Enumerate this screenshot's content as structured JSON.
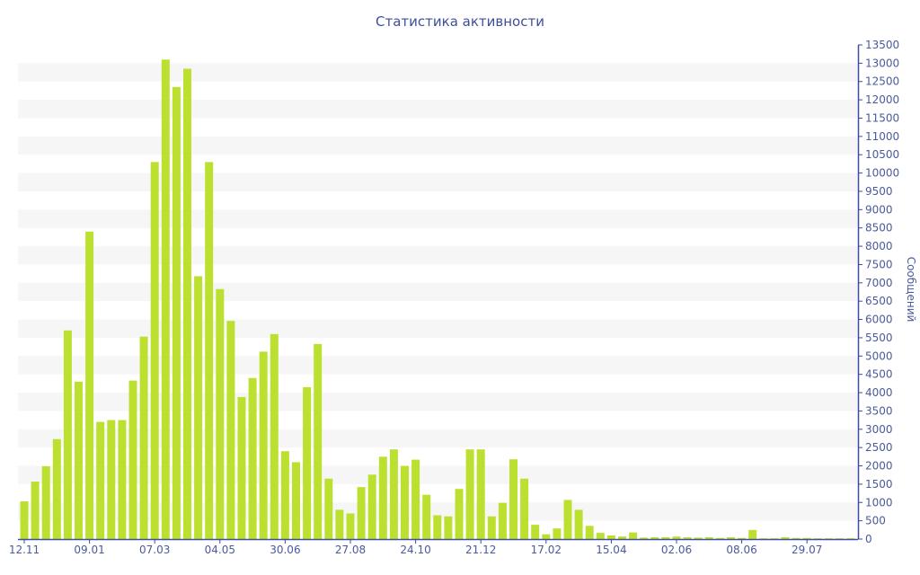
{
  "chart_data": {
    "type": "bar",
    "title": "Статистика активности",
    "ylabel": "Сообщений",
    "xlabel": "",
    "ylim": [
      0,
      13500
    ],
    "ytick_step": 500,
    "grid": "alternating horizontal bands",
    "bar_color": "#bce030",
    "axis_color": "#3d4f9a",
    "values": [
      1030,
      1570,
      1990,
      2730,
      5700,
      4300,
      8400,
      3200,
      3250,
      3250,
      4330,
      5530,
      10300,
      13100,
      12350,
      12850,
      7180,
      10300,
      6830,
      5960,
      3880,
      4400,
      5120,
      5600,
      2400,
      2100,
      4150,
      5330,
      1650,
      800,
      700,
      1420,
      1760,
      2250,
      2450,
      2000,
      2170,
      1210,
      650,
      620,
      1370,
      2450,
      2450,
      620,
      990,
      2180,
      1650,
      390,
      130,
      290,
      1070,
      800,
      360,
      170,
      100,
      70,
      180,
      40,
      50,
      50,
      70,
      50,
      40,
      50,
      30,
      50,
      30,
      250,
      20,
      20,
      50,
      30,
      30,
      20,
      20,
      20,
      20
    ],
    "xticks": [
      {
        "index": 0,
        "label": "12.11"
      },
      {
        "index": 6,
        "label": "09.01"
      },
      {
        "index": 12,
        "label": "07.03"
      },
      {
        "index": 18,
        "label": "04.05"
      },
      {
        "index": 24,
        "label": "30.06"
      },
      {
        "index": 30,
        "label": "27.08"
      },
      {
        "index": 36,
        "label": "24.10"
      },
      {
        "index": 42,
        "label": "21.12"
      },
      {
        "index": 48,
        "label": "17.02"
      },
      {
        "index": 54,
        "label": "15.04"
      },
      {
        "index": 60,
        "label": "02.06"
      },
      {
        "index": 66,
        "label": "08.06"
      },
      {
        "index": 72,
        "label": "29.07"
      }
    ]
  }
}
